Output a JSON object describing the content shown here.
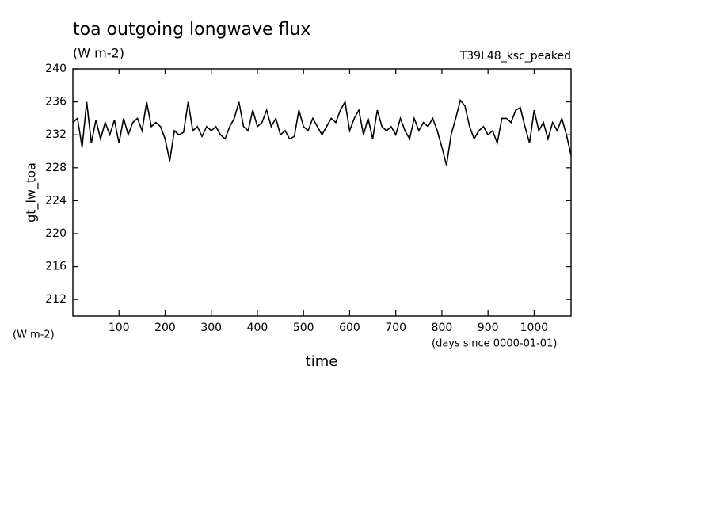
{
  "chart_data": {
    "type": "line",
    "title": "toa outgoing longwave flux",
    "subtitle": "(W m-2)",
    "run_name": "T39L48_ksc_peaked",
    "y_label": "gt_lw_toa",
    "y_unit": "(W m-2)",
    "x_label": "time",
    "x_unit": "(days since 0000-01-01)",
    "xlim": [
      0,
      1080
    ],
    "xticks": [
      100,
      200,
      300,
      400,
      500,
      600,
      700,
      800,
      900,
      1000
    ],
    "ylim": [
      210,
      240
    ],
    "yticks": [
      212,
      216,
      220,
      224,
      228,
      232,
      236,
      240
    ],
    "x": [
      0,
      10,
      20,
      30,
      40,
      50,
      60,
      70,
      80,
      90,
      100,
      110,
      120,
      130,
      140,
      150,
      160,
      170,
      180,
      190,
      200,
      210,
      220,
      230,
      240,
      250,
      260,
      270,
      280,
      290,
      300,
      310,
      320,
      330,
      340,
      350,
      360,
      370,
      380,
      390,
      400,
      410,
      420,
      430,
      440,
      450,
      460,
      470,
      480,
      490,
      500,
      510,
      520,
      530,
      540,
      550,
      560,
      570,
      580,
      590,
      600,
      610,
      620,
      630,
      640,
      650,
      660,
      670,
      680,
      690,
      700,
      710,
      720,
      730,
      740,
      750,
      760,
      770,
      780,
      790,
      800,
      810,
      820,
      830,
      840,
      850,
      860,
      870,
      880,
      890,
      900,
      910,
      920,
      930,
      940,
      950,
      960,
      970,
      980,
      990,
      1000,
      1010,
      1020,
      1030,
      1040,
      1050,
      1060,
      1070,
      1080
    ],
    "series": [
      {
        "name": "gt_lw_toa",
        "color": "#000000",
        "values": [
          233.5,
          234,
          230.5,
          236,
          231,
          233.8,
          231.5,
          233.5,
          232,
          233.8,
          231,
          234,
          232,
          233.5,
          234,
          232.5,
          236,
          233,
          233.5,
          233,
          231.5,
          228.8,
          232.5,
          232,
          232.3,
          236,
          232.5,
          233,
          231.8,
          233,
          232.5,
          233,
          232,
          231.5,
          233,
          234,
          236,
          233,
          232.5,
          235,
          233,
          233.5,
          235,
          233,
          234,
          232,
          232.5,
          231.5,
          231.8,
          235,
          233,
          232.5,
          234,
          233,
          232,
          233,
          234,
          233.5,
          235,
          236,
          232.5,
          234,
          235,
          232,
          234,
          231.5,
          235,
          233,
          232.5,
          233,
          232,
          234,
          232.5,
          231.5,
          234,
          232.5,
          233.5,
          233,
          234,
          232.5,
          230.5,
          228.3,
          232,
          234,
          236.2,
          235.5,
          233,
          231.5,
          232.5,
          233,
          232,
          232.5,
          231,
          234,
          234,
          233.5,
          235,
          235.3,
          233,
          231,
          235,
          232.5,
          233.5,
          231.5,
          233.5,
          232.5,
          234,
          232,
          229.5
        ]
      }
    ]
  }
}
